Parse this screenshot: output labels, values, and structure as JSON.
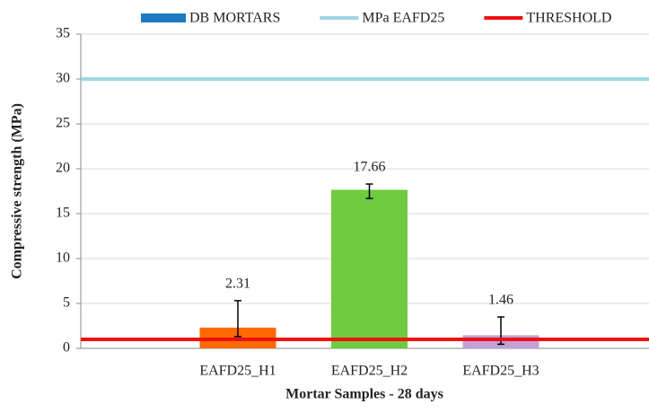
{
  "chart_data": {
    "type": "bar",
    "xlabel": "Mortar Samples - 28 days",
    "ylabel": "Compressive strength (MPa)",
    "categories": [
      "EAFD25_H1",
      "EAFD25_H2",
      "EAFD25_H3"
    ],
    "series": [
      {
        "name": "DB MORTARS",
        "color": "#1f7bc1",
        "bar_colors": [
          "#ff6a00",
          "#6ecb3f",
          "#c3a0d6"
        ],
        "values": [
          2.31,
          17.66,
          1.46
        ],
        "error_minus": [
          1.0,
          0.96,
          1.0
        ],
        "error_plus": [
          3.0,
          0.64,
          2.04
        ]
      }
    ],
    "reference_lines": [
      {
        "name": "MPa EAFD25",
        "color": "#9fd6e2",
        "value": 30
      },
      {
        "name": "THRESHOLD",
        "color": "#ee1111",
        "value": 1
      }
    ],
    "ylim": [
      0,
      35
    ],
    "yticks": [
      0,
      5,
      10,
      15,
      20,
      25,
      30,
      35
    ],
    "grid": true,
    "legend": "top"
  }
}
